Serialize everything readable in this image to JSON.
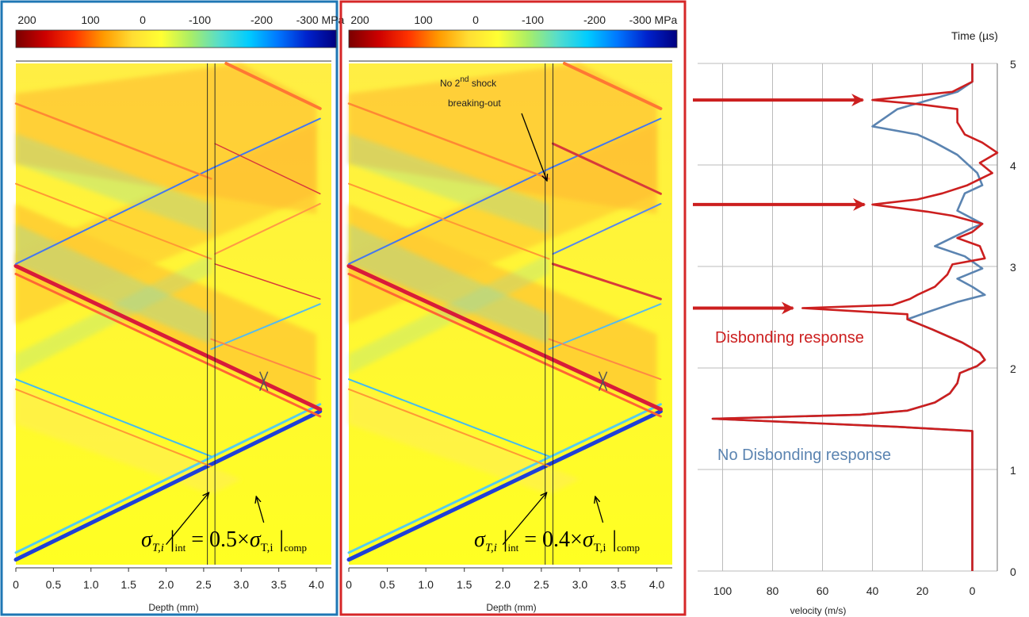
{
  "chart_data": [
    {
      "type": "heatmap",
      "panel": "left",
      "frame_color": "#1f77b4",
      "colorbar": {
        "ticks": [
          "200",
          "100",
          "0",
          "-100",
          "-200",
          "-300 MPa"
        ],
        "colors": [
          "#7a0000",
          "#cc0000",
          "#ff3300",
          "#ff9900",
          "#ffdd33",
          "#ffff33",
          "#aaee66",
          "#55ddcc",
          "#00ccff",
          "#0077ff",
          "#0022cc",
          "#000080"
        ]
      },
      "x": {
        "label": "Depth (mm)",
        "ticks": [
          "0",
          "0.5",
          "1.0",
          "1.5",
          "2.0",
          "2.5",
          "3.0",
          "3.5",
          "4.0"
        ],
        "lim": [
          0,
          4.2
        ]
      },
      "y": {
        "lim": [
          0,
          5
        ]
      },
      "annotation": {
        "sigma": "σ",
        "sub": "T,i",
        "int": "int",
        "op": "=",
        "factor": "0.5×",
        "sigma2": "σ",
        "sub2": "T,i",
        "comp": "comp"
      },
      "interface_depth": [
        2.55,
        2.65
      ]
    },
    {
      "type": "heatmap",
      "panel": "middle",
      "frame_color": "#d62728",
      "colorbar": {
        "ticks": [
          "200",
          "100",
          "0",
          "-100",
          "-200",
          "-300 MPa"
        ],
        "colors": [
          "#7a0000",
          "#cc0000",
          "#ff3300",
          "#ff9900",
          "#ffdd33",
          "#ffff33",
          "#aaee66",
          "#55ddcc",
          "#00ccff",
          "#0077ff",
          "#0022cc",
          "#000080"
        ]
      },
      "x": {
        "label": "Depth (mm)",
        "ticks": [
          "0",
          "0.5",
          "1.0",
          "1.5",
          "2.0",
          "2.5",
          "3.0",
          "3.5",
          "4.0"
        ],
        "lim": [
          0,
          4.2
        ]
      },
      "y": {
        "lim": [
          0,
          5
        ]
      },
      "annotation": {
        "sigma": "σ",
        "sub": "T,i",
        "int": "int",
        "op": "=",
        "factor": "0.4×",
        "sigma2": "σ",
        "sub2": "T,i",
        "comp": "comp"
      },
      "note": {
        "line1_pre": "No 2",
        "line1_sup": "nd",
        "line1_post": " shock",
        "line2": "breaking-out"
      },
      "interface_depth": [
        2.55,
        2.65
      ]
    },
    {
      "type": "line",
      "panel": "right",
      "xlabel": "velocity (m/s)",
      "ylabel": "Time (µs)",
      "xlim": [
        -10,
        110
      ],
      "x_reversed": true,
      "xticks": [
        "100",
        "80",
        "60",
        "40",
        "20",
        "0"
      ],
      "yticks": [
        "0",
        "1",
        "2",
        "3",
        "4",
        "5"
      ],
      "ylim": [
        0,
        5
      ],
      "grid": true,
      "series": [
        {
          "name": "Disbonding response",
          "color": "#cc1f1f",
          "points": [
            [
              0,
              0
            ],
            [
              0,
              1.3
            ],
            [
              0,
              1.38
            ],
            [
              30,
              1.42
            ],
            [
              104,
              1.5
            ],
            [
              45,
              1.54
            ],
            [
              26,
              1.58
            ],
            [
              15,
              1.66
            ],
            [
              9,
              1.75
            ],
            [
              6,
              1.85
            ],
            [
              5,
              1.95
            ],
            [
              -2,
              2.02
            ],
            [
              -5,
              2.08
            ],
            [
              -3,
              2.15
            ],
            [
              4,
              2.25
            ],
            [
              16,
              2.38
            ],
            [
              26,
              2.48
            ],
            [
              26,
              2.53
            ],
            [
              68,
              2.59
            ],
            [
              32,
              2.62
            ],
            [
              25,
              2.68
            ],
            [
              22,
              2.72
            ],
            [
              15,
              2.8
            ],
            [
              10,
              2.92
            ],
            [
              8,
              3.02
            ],
            [
              -5,
              3.08
            ],
            [
              -3,
              3.2
            ],
            [
              6,
              3.28
            ],
            [
              0,
              3.34
            ],
            [
              -4,
              3.42
            ],
            [
              8,
              3.5
            ],
            [
              18,
              3.54
            ],
            [
              40,
              3.61
            ],
            [
              22,
              3.66
            ],
            [
              12,
              3.72
            ],
            [
              2,
              3.8
            ],
            [
              -8,
              3.92
            ],
            [
              -3,
              4.02
            ],
            [
              -10,
              4.12
            ],
            [
              -4,
              4.22
            ],
            [
              3,
              4.3
            ],
            [
              6,
              4.42
            ],
            [
              6,
              4.55
            ],
            [
              22,
              4.6
            ],
            [
              40,
              4.64
            ],
            [
              8,
              4.72
            ],
            [
              0,
              4.82
            ],
            [
              0,
              5
            ]
          ]
        },
        {
          "name": "No Disbonding response",
          "color": "#5b84b1",
          "points": [
            [
              0,
              0
            ],
            [
              0,
              1.3
            ],
            [
              0,
              1.38
            ],
            [
              30,
              1.42
            ],
            [
              104,
              1.5
            ],
            [
              45,
              1.54
            ],
            [
              26,
              1.58
            ],
            [
              15,
              1.66
            ],
            [
              9,
              1.75
            ],
            [
              6,
              1.85
            ],
            [
              5,
              1.95
            ],
            [
              -2,
              2.02
            ],
            [
              -5,
              2.08
            ],
            [
              -3,
              2.15
            ],
            [
              4,
              2.25
            ],
            [
              16,
              2.38
            ],
            [
              26,
              2.48
            ],
            [
              18,
              2.55
            ],
            [
              6,
              2.65
            ],
            [
              -5,
              2.72
            ],
            [
              0,
              2.8
            ],
            [
              6,
              2.88
            ],
            [
              -4,
              2.98
            ],
            [
              3,
              3.1
            ],
            [
              15,
              3.2
            ],
            [
              0,
              3.38
            ],
            [
              -4,
              3.42
            ],
            [
              6,
              3.55
            ],
            [
              3,
              3.72
            ],
            [
              -4,
              3.8
            ],
            [
              -2,
              3.92
            ],
            [
              6,
              4.1
            ],
            [
              15,
              4.22
            ],
            [
              22,
              4.3
            ],
            [
              40,
              4.38
            ],
            [
              30,
              4.55
            ],
            [
              6,
              4.72
            ],
            [
              0,
              4.82
            ],
            [
              0,
              5
            ]
          ]
        }
      ],
      "labels": {
        "disbond": "Disbonding response",
        "nodisbond": "No Disbonding response"
      },
      "arrow_times": [
        4.64,
        3.61,
        2.59
      ]
    }
  ]
}
